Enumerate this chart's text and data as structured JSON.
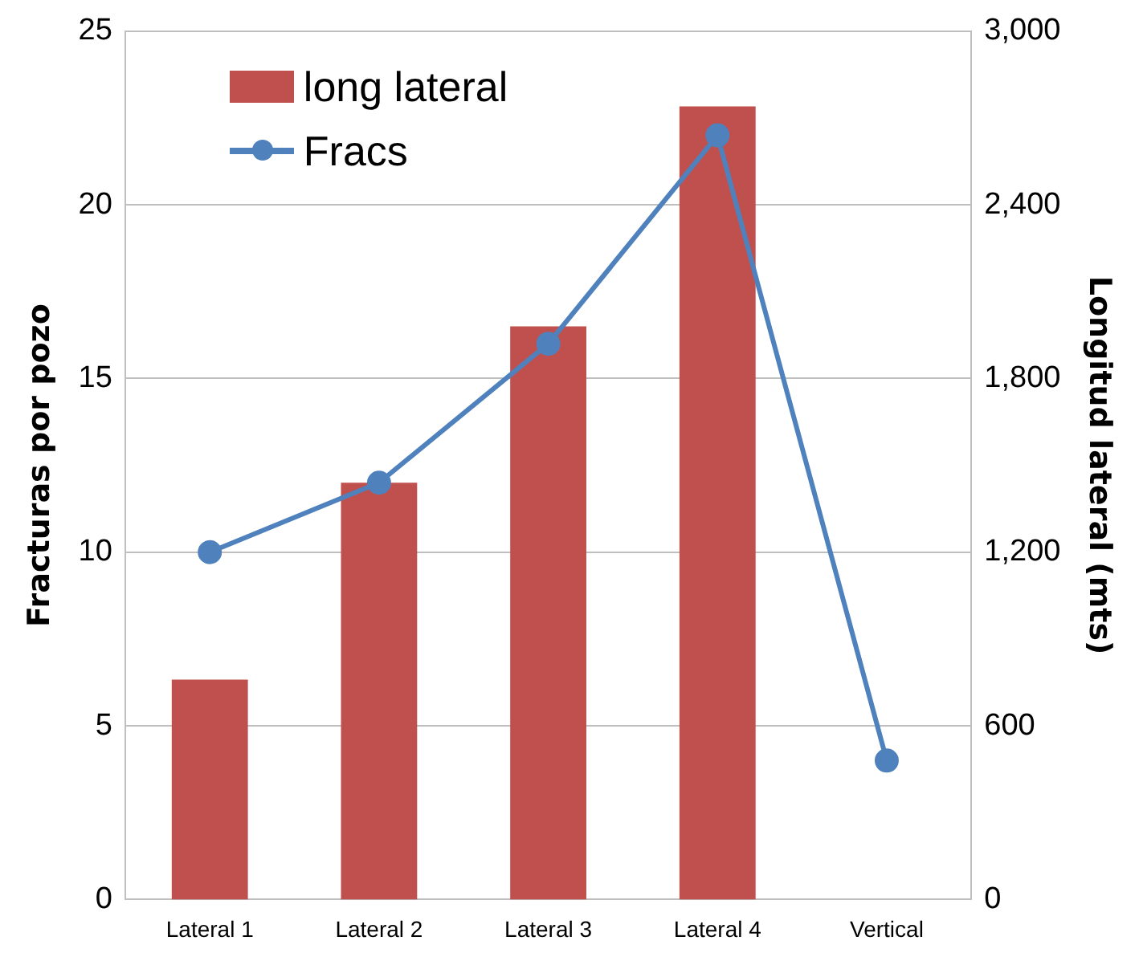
{
  "chart_data": {
    "type": "bar",
    "categories": [
      "Lateral 1",
      "Lateral 2",
      "Lateral 3",
      "Lateral 4",
      "Vertical"
    ],
    "series": [
      {
        "name": "long lateral",
        "axis": "y2",
        "color": "#c0504d",
        "values": [
          760,
          1440,
          1980,
          2740,
          null
        ]
      },
      {
        "name": "Fracs",
        "type": "line",
        "axis": "y",
        "color": "#4f81bd",
        "values": [
          10,
          12,
          16,
          22,
          4
        ]
      }
    ],
    "ylabel": "Fracturas por pozo",
    "y2label": "Longitud lateral (mts)",
    "ylim": [
      0,
      25
    ],
    "yticks": [
      0,
      5,
      10,
      15,
      20,
      25
    ],
    "y2lim": [
      0,
      3000
    ],
    "y2ticks": [
      0,
      {
        "value": 600,
        "label": "600"
      },
      {
        "value": 1200,
        "label": "1,200"
      },
      {
        "value": 1800,
        "label": "1,800"
      },
      {
        "value": 2400,
        "label": "2,400"
      },
      {
        "value": 3000,
        "label": "3,000"
      }
    ],
    "grid": "y",
    "legend": "top left",
    "marker": "circle",
    "line_style": "solid"
  }
}
